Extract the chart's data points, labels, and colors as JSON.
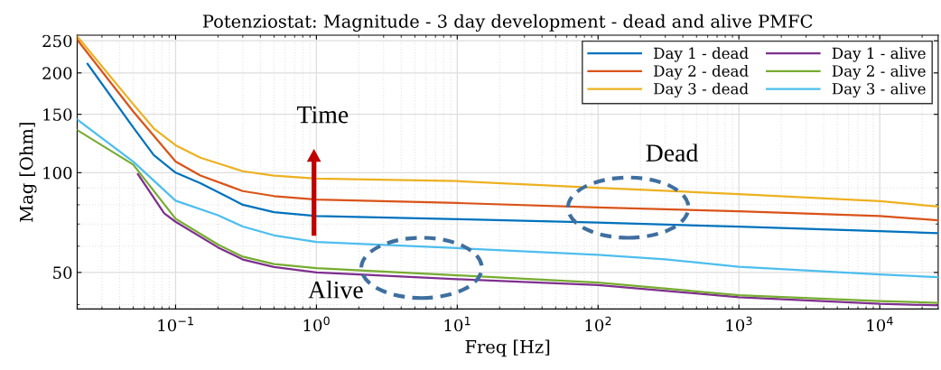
{
  "chart_data": {
    "type": "line",
    "title": "Potenziostat: Magnitude - 3 day development - dead and alive PMFC",
    "xlabel": "Freq [Hz]",
    "ylabel": "Mag [Ohm]",
    "log": "xy",
    "grid": true,
    "legend": "top right",
    "line_style": "solid",
    "marker": "none",
    "xlim": [
      0.02,
      26000
    ],
    "ylim": [
      38.8,
      260
    ],
    "xticks": [
      {
        "value": 0.1,
        "label": "10$^{−1}$"
      },
      {
        "value": 1,
        "label": "10$^{0}$"
      },
      {
        "value": 10,
        "label": "10$^{1}$"
      },
      {
        "value": 100,
        "label": "10$^{2}$"
      },
      {
        "value": 1000,
        "label": "10$^{3}$"
      },
      {
        "value": 10000,
        "label": "10$^{4}$"
      }
    ],
    "yticks": [
      50,
      100,
      150,
      200,
      250
    ],
    "annotations": [
      "Time",
      "Dead",
      "Alive"
    ],
    "series": [
      {
        "name": "Day 1 - dead",
        "color": "#0072bd",
        "x": [
          0.0237,
          0.05,
          0.07,
          0.1,
          0.15,
          0.3,
          0.5,
          1,
          10,
          100,
          1000,
          10000,
          26000
        ],
        "values": [
          213,
          137,
          113,
          100,
          93,
          80,
          76,
          74,
          72.4,
          70.7,
          68.7,
          66.6,
          65.7
        ]
      },
      {
        "name": "Day 2 - dead",
        "color": "#d95319",
        "x": [
          0.02,
          0.05,
          0.1,
          0.15,
          0.3,
          0.5,
          1,
          10,
          100,
          1000,
          10000,
          26000
        ],
        "values": [
          252,
          153,
          108,
          98,
          88,
          85,
          83,
          81,
          78.5,
          76.5,
          74,
          71.8
        ]
      },
      {
        "name": "Day 3 - dead",
        "color": "#edb120",
        "x": [
          0.02,
          0.05,
          0.07,
          0.1,
          0.15,
          0.3,
          0.5,
          1,
          10,
          100,
          1000,
          10000,
          26000
        ],
        "values": [
          258,
          161,
          136,
          121,
          111,
          101,
          98,
          96,
          94.3,
          90,
          86.2,
          82.1,
          79
        ]
      },
      {
        "name": "Day 1 - alive",
        "color": "#7e2f8e",
        "x": [
          0.054,
          0.083,
          0.1,
          0.2,
          0.3,
          0.5,
          1,
          10,
          100,
          1000,
          10000,
          26000
        ],
        "values": [
          99,
          75.4,
          71.1,
          59.5,
          54.7,
          51.9,
          50,
          47.7,
          45.8,
          42.1,
          40.2,
          39.8
        ]
      },
      {
        "name": "Day 2 - alive",
        "color": "#77ac30",
        "x": [
          0.02,
          0.05,
          0.1,
          0.2,
          0.3,
          0.5,
          1,
          10,
          100,
          1000,
          10000,
          26000
        ],
        "values": [
          134.5,
          105.8,
          72.6,
          60.7,
          55.8,
          53,
          51.5,
          49,
          46.6,
          42.7,
          41,
          40.5
        ]
      },
      {
        "name": "Day 3 - alive",
        "color": "#4dbeee",
        "x": [
          0.02,
          0.05,
          0.1,
          0.2,
          0.3,
          0.5,
          1,
          10,
          100,
          300,
          1000,
          10000,
          26000
        ],
        "values": [
          144.7,
          108,
          82.3,
          74.4,
          68.8,
          64.7,
          61.8,
          59.2,
          56.5,
          54.8,
          52,
          49.3,
          48.4
        ]
      }
    ]
  }
}
